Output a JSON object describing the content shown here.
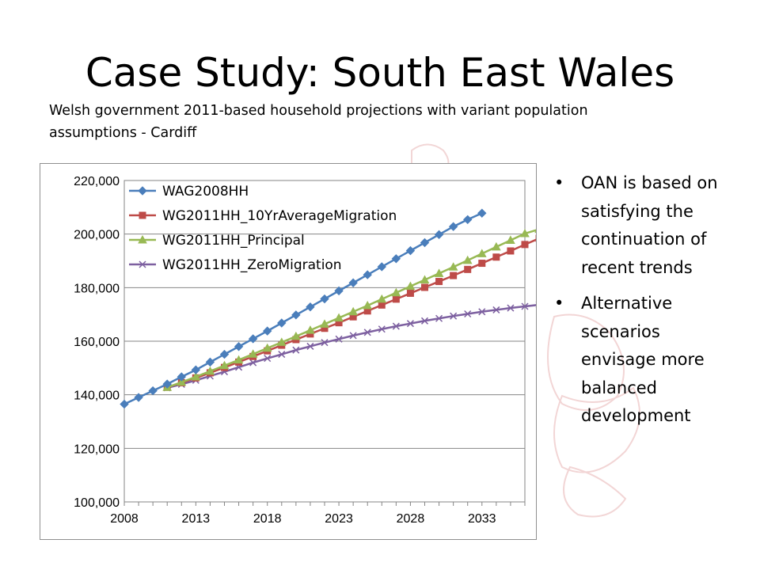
{
  "slide": {
    "title": "Case Study: South East Wales",
    "subtitle": "Welsh government 2011-based household projections with variant population assumptions - Cardiff",
    "bullets": [
      "OAN is based on satisfying the continuation of recent trends",
      "Alternative scenarios envisage more balanced development"
    ]
  },
  "chart_data": {
    "type": "line",
    "xlim": [
      2008,
      2036
    ],
    "ylim": [
      100000,
      220000
    ],
    "x_ticks": [
      2008,
      2013,
      2018,
      2023,
      2028,
      2033
    ],
    "y_ticks": [
      100000,
      120000,
      140000,
      160000,
      180000,
      200000,
      220000
    ],
    "x_tick_labels": [
      "2008",
      "2013",
      "2018",
      "2023",
      "2028",
      "2033"
    ],
    "y_tick_labels": [
      "100,000",
      "120,000",
      "140,000",
      "160,000",
      "180,000",
      "200,000",
      "220,000"
    ],
    "grid": "horizontal",
    "legend_position": "top-left",
    "series": [
      {
        "name": "WAG2008HH",
        "color": "#4a7ebb",
        "marker": "diamond",
        "x_start": 2008,
        "values": [
          136500,
          139000,
          141500,
          144000,
          146700,
          149300,
          152200,
          155100,
          158000,
          160900,
          163800,
          166800,
          169800,
          172800,
          175800,
          178800,
          181800,
          184800,
          187800,
          190800,
          193800,
          196800,
          199800,
          202800,
          205400,
          207800
        ]
      },
      {
        "name": "WG2011HH_10YrAverageMigration",
        "color": "#be4b48",
        "marker": "square",
        "x_start": 2011,
        "values": [
          142800,
          144500,
          146300,
          148200,
          150200,
          152200,
          154300,
          156400,
          158500,
          160600,
          162700,
          164800,
          166900,
          169100,
          171300,
          173500,
          175700,
          177900,
          180100,
          182300,
          184500,
          186800,
          189100,
          191400,
          193700,
          196100,
          198400
        ]
      },
      {
        "name": "WG2011HH_Principal",
        "color": "#98b954",
        "marker": "triangle",
        "x_start": 2011,
        "values": [
          142800,
          144700,
          146700,
          148800,
          150900,
          153000,
          155200,
          157400,
          159600,
          161800,
          164100,
          166400,
          168700,
          171000,
          173300,
          175700,
          178100,
          180500,
          182900,
          185300,
          187700,
          190200,
          192700,
          195200,
          197700,
          200200,
          201800
        ]
      },
      {
        "name": "WG2011HH_ZeroMigration",
        "color": "#7d60a0",
        "marker": "x",
        "x_start": 2011,
        "values": [
          142600,
          143900,
          145400,
          147000,
          148600,
          150300,
          152000,
          153600,
          155100,
          156700,
          158100,
          159500,
          160800,
          162100,
          163300,
          164500,
          165600,
          166600,
          167600,
          168500,
          169400,
          170200,
          171000,
          171700,
          172400,
          173000,
          173600
        ]
      }
    ]
  }
}
